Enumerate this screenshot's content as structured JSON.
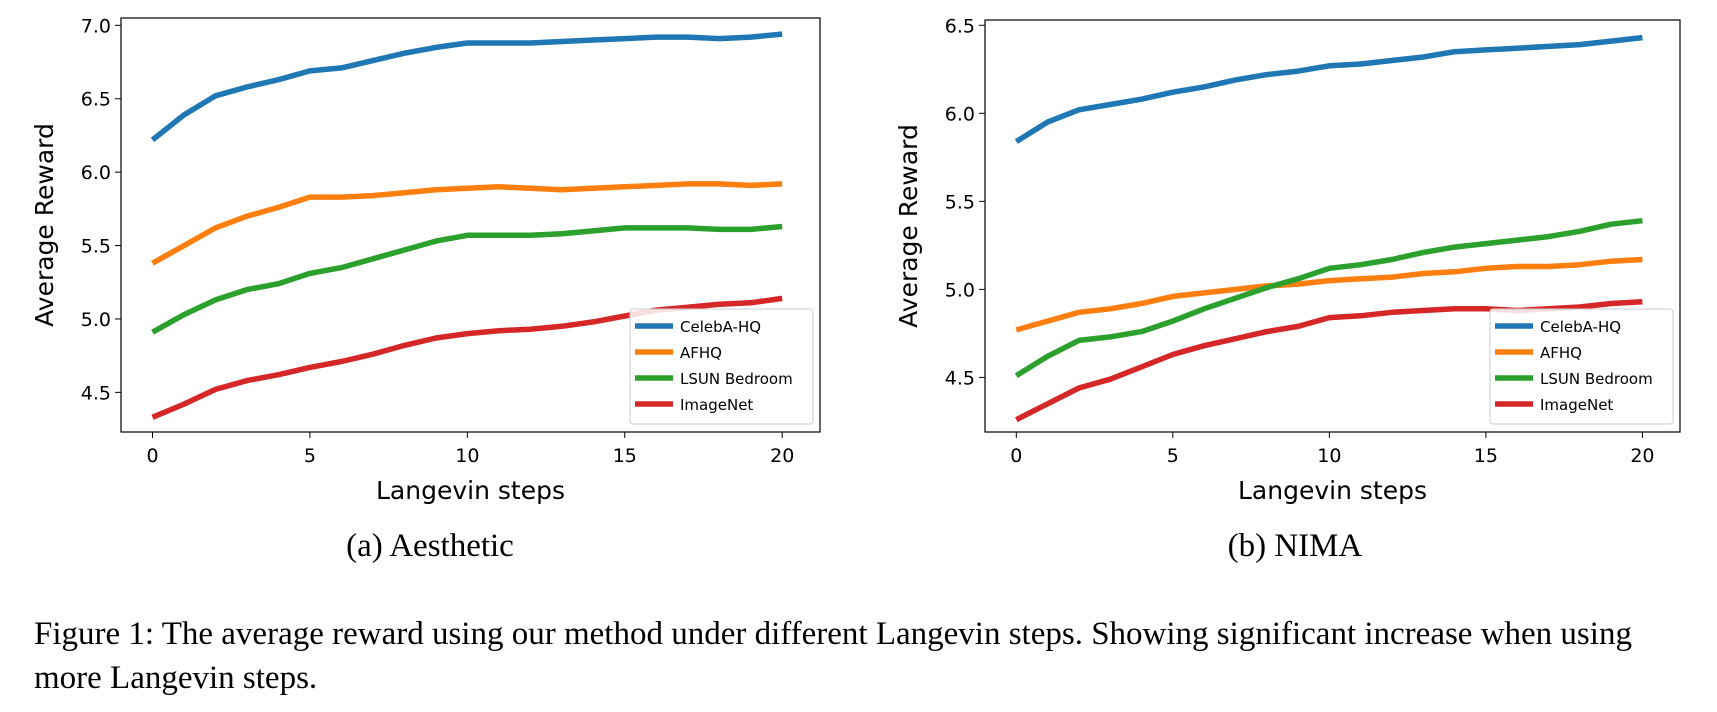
{
  "chart_data": [
    {
      "type": "line",
      "subcaption": "(a) Aesthetic",
      "xlabel": "Langevin steps",
      "ylabel": "Average Reward",
      "xlim": [
        -1,
        21.2
      ],
      "ylim": [
        4.23,
        7.05
      ],
      "xticks": [
        0,
        5,
        10,
        15,
        20
      ],
      "yticks": [
        4.5,
        5.0,
        5.5,
        6.0,
        6.5,
        7.0
      ],
      "ytick_labels": [
        "4.5",
        "5.0",
        "5.5",
        "6.0",
        "6.5",
        "7.0"
      ],
      "grid": false,
      "legend_position": "lower-right",
      "x": [
        0,
        1,
        2,
        3,
        4,
        5,
        6,
        7,
        8,
        9,
        10,
        11,
        12,
        13,
        14,
        15,
        16,
        17,
        18,
        19,
        20
      ],
      "series": [
        {
          "name": "CelebA-HQ",
          "color": "#1f77b4",
          "values": [
            6.22,
            6.39,
            6.52,
            6.58,
            6.63,
            6.69,
            6.71,
            6.76,
            6.81,
            6.85,
            6.88,
            6.88,
            6.88,
            6.89,
            6.9,
            6.91,
            6.92,
            6.92,
            6.91,
            6.92,
            6.94
          ]
        },
        {
          "name": "AFHQ",
          "color": "#ff7f0e",
          "values": [
            5.38,
            5.5,
            5.62,
            5.7,
            5.76,
            5.83,
            5.83,
            5.84,
            5.86,
            5.88,
            5.89,
            5.9,
            5.89,
            5.88,
            5.89,
            5.9,
            5.91,
            5.92,
            5.92,
            5.91,
            5.92
          ]
        },
        {
          "name": "LSUN Bedroom",
          "color": "#2ca02c",
          "values": [
            4.91,
            5.03,
            5.13,
            5.2,
            5.24,
            5.31,
            5.35,
            5.41,
            5.47,
            5.53,
            5.57,
            5.57,
            5.57,
            5.58,
            5.6,
            5.62,
            5.62,
            5.62,
            5.61,
            5.61,
            5.63
          ]
        },
        {
          "name": "ImageNet",
          "color": "#d62728",
          "values": [
            4.33,
            4.42,
            4.52,
            4.58,
            4.62,
            4.67,
            4.71,
            4.76,
            4.82,
            4.87,
            4.9,
            4.92,
            4.93,
            4.95,
            4.98,
            5.02,
            5.06,
            5.08,
            5.1,
            5.11,
            5.14
          ]
        }
      ]
    },
    {
      "type": "line",
      "subcaption": "(b) NIMA",
      "xlabel": "Langevin steps",
      "ylabel": "Average Reward",
      "xlim": [
        -1,
        21.2
      ],
      "ylim": [
        4.19,
        6.53
      ],
      "xticks": [
        0,
        5,
        10,
        15,
        20
      ],
      "yticks": [
        4.5,
        5.0,
        5.5,
        6.0,
        6.5
      ],
      "ytick_labels": [
        "4.5",
        "5.0",
        "5.5",
        "6.0",
        "6.5"
      ],
      "grid": false,
      "legend_position": "lower-right",
      "x": [
        0,
        1,
        2,
        3,
        4,
        5,
        6,
        7,
        8,
        9,
        10,
        11,
        12,
        13,
        14,
        15,
        16,
        17,
        18,
        19,
        20
      ],
      "series": [
        {
          "name": "CelebA-HQ",
          "color": "#1f77b4",
          "values": [
            5.84,
            5.95,
            6.02,
            6.05,
            6.08,
            6.12,
            6.15,
            6.19,
            6.22,
            6.24,
            6.27,
            6.28,
            6.3,
            6.32,
            6.35,
            6.36,
            6.37,
            6.38,
            6.39,
            6.41,
            6.43
          ]
        },
        {
          "name": "AFHQ",
          "color": "#ff7f0e",
          "values": [
            4.77,
            4.82,
            4.87,
            4.89,
            4.92,
            4.96,
            4.98,
            5.0,
            5.02,
            5.03,
            5.05,
            5.06,
            5.07,
            5.09,
            5.1,
            5.12,
            5.13,
            5.13,
            5.14,
            5.16,
            5.17
          ]
        },
        {
          "name": "LSUN Bedroom",
          "color": "#2ca02c",
          "values": [
            4.51,
            4.62,
            4.71,
            4.73,
            4.76,
            4.82,
            4.89,
            4.95,
            5.01,
            5.06,
            5.12,
            5.14,
            5.17,
            5.21,
            5.24,
            5.26,
            5.28,
            5.3,
            5.33,
            5.37,
            5.39
          ]
        },
        {
          "name": "ImageNet",
          "color": "#d62728",
          "values": [
            4.26,
            4.35,
            4.44,
            4.49,
            4.56,
            4.63,
            4.68,
            4.72,
            4.76,
            4.79,
            4.84,
            4.85,
            4.87,
            4.88,
            4.89,
            4.89,
            4.88,
            4.89,
            4.9,
            4.92,
            4.93
          ]
        }
      ]
    }
  ],
  "caption": "Figure 1: The average reward using our method under different Langevin steps. Showing significant increase when using more Langevin steps."
}
